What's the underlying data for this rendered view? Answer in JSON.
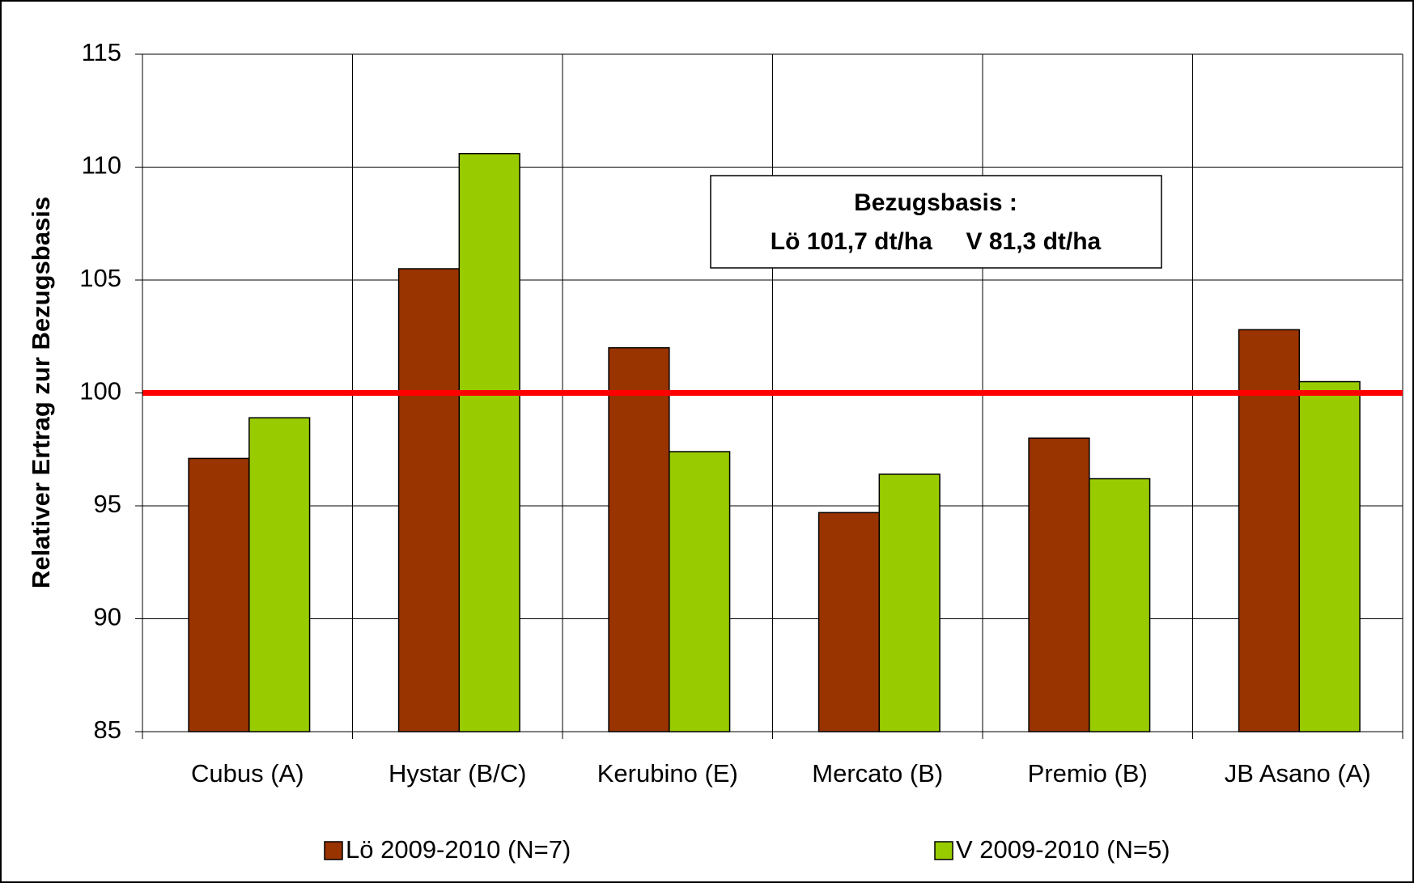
{
  "chart_data": {
    "type": "bar",
    "y_label": "Relativer Ertrag zur Bezugsbasis",
    "categories": [
      "Cubus (A)",
      "Hystar (B/C)",
      "Kerubino (E)",
      "Mercato (B)",
      "Premio (B)",
      "JB Asano (A)"
    ],
    "series": [
      {
        "name": "Lö 2009-2010 (N=7)",
        "color": "#993300",
        "values": [
          97.1,
          105.5,
          102.0,
          94.7,
          98.0,
          102.8
        ]
      },
      {
        "name": "V 2009-2010 (N=5)",
        "color": "#99cc00",
        "values": [
          98.9,
          110.6,
          97.4,
          96.4,
          96.2,
          100.5
        ]
      }
    ],
    "ylim": [
      85,
      115
    ],
    "yticks": [
      85,
      90,
      95,
      100,
      105,
      110,
      115
    ],
    "grid": true,
    "reference_line": {
      "value": 100,
      "color": "#ff0000"
    },
    "annotation": [
      "Bezugsbasis :",
      "Lö 101,7 dt/ha     V 81,3 dt/ha"
    ],
    "legend": "bottom"
  }
}
